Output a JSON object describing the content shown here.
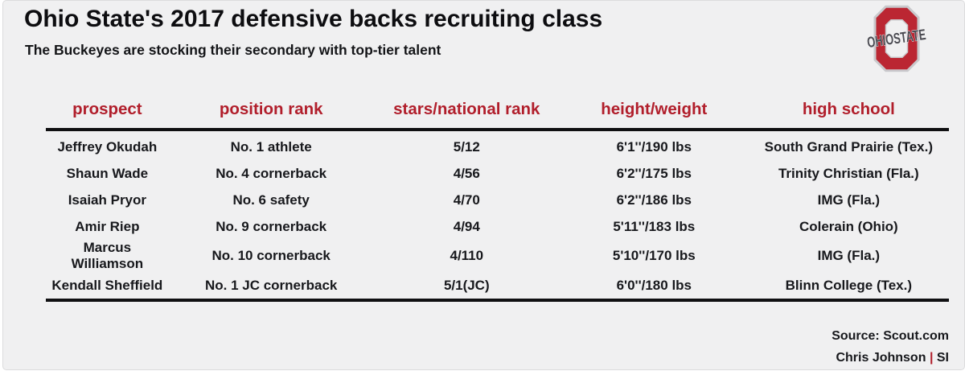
{
  "header": {
    "title": "Ohio State's 2017 defensive backs recruiting class",
    "subtitle": "The Buckeyes are stocking their secondary with top-tier talent"
  },
  "logo": {
    "name": "ohio-state-logo",
    "text": "OHIOSTATE"
  },
  "colors": {
    "accent_crimson": "#b11e2b",
    "logo_scarlet": "#bb2632",
    "background": "#f0f0f1",
    "rule_black": "#101012",
    "text": "#17181c"
  },
  "footer": {
    "source": "Source: Scout.com",
    "credit_name": "Chris Johnson",
    "credit_separator": "|",
    "credit_org": "SI"
  },
  "chart_data": {
    "type": "table",
    "title": "Ohio State's 2017 defensive backs recruiting class",
    "subtitle": "The Buckeyes are stocking their secondary with top-tier talent",
    "columns": [
      "prospect",
      "position rank",
      "stars/national rank",
      "height/weight",
      "high school"
    ],
    "rows": [
      [
        "Jeffrey Okudah",
        "No. 1 athlete",
        "5/12",
        "6'1''/190 lbs",
        "South Grand Prairie (Tex.)"
      ],
      [
        "Shaun Wade",
        "No. 4 cornerback",
        "4/56",
        "6'2''/175 lbs",
        "Trinity Christian (Fla.)"
      ],
      [
        "Isaiah Pryor",
        "No. 6 safety",
        "4/70",
        "6'2''/186 lbs",
        "IMG (Fla.)"
      ],
      [
        "Amir Riep",
        "No. 9 cornerback",
        "4/94",
        "5'11''/183 lbs",
        "Colerain (Ohio)"
      ],
      [
        "Marcus Williamson",
        "No. 10 cornerback",
        "4/110",
        "5'10''/170 lbs",
        "IMG (Fla.)"
      ],
      [
        "Kendall Sheffield",
        "No. 1 JC cornerback",
        "5/1(JC)",
        "6'0''/180 lbs",
        "Blinn College (Tex.)"
      ]
    ],
    "column_widths_pct": [
      13.6,
      22.7,
      20.6,
      20.9,
      22.2
    ],
    "source": "Source: Scout.com",
    "credit": "Chris Johnson | SI"
  }
}
